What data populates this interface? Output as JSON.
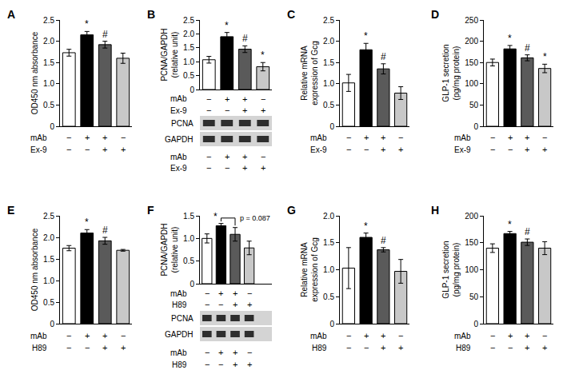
{
  "chart_data": [
    {
      "type": "bar",
      "label": "A",
      "ylabel": "OD450 nm absorbance",
      "categories": [
        null,
        null,
        null,
        null
      ],
      "values": [
        1.73,
        2.15,
        1.92,
        1.6
      ],
      "errors": [
        0.08,
        0.08,
        0.08,
        0.12
      ],
      "marks": [
        null,
        "*",
        "#",
        null
      ],
      "colors": [
        "#ffffff",
        "#000000",
        "#5a5a5a",
        "#c8c8c8"
      ],
      "ylim": [
        0,
        2.5
      ],
      "yticks": [
        0,
        0.5,
        {
          "value": 1,
          "label": "1.0"
        },
        1.5,
        {
          "value": 2,
          "label": "2.0"
        },
        2.5
      ],
      "treatments": [
        {
          "name": "mAb",
          "signs": [
            "−",
            "+",
            "+",
            "−"
          ]
        },
        {
          "name": "Ex-9",
          "signs": [
            "−",
            "−",
            "+",
            "+"
          ]
        }
      ]
    },
    {
      "type": "bar",
      "label": "B",
      "ylabel": [
        "PCNA/GAPDH",
        "(relative unit)"
      ],
      "categories": [
        null,
        null,
        null,
        null
      ],
      "values": [
        1.07,
        1.9,
        1.45,
        0.82
      ],
      "errors": [
        0.12,
        0.15,
        0.12,
        0.15
      ],
      "marks": [
        null,
        "*",
        "#",
        "*"
      ],
      "colors": [
        "#ffffff",
        "#000000",
        "#5a5a5a",
        "#c8c8c8"
      ],
      "ylim": [
        0,
        2.5
      ],
      "yticks": [
        0,
        0.5,
        {
          "value": 1,
          "label": "1.0"
        },
        1.5,
        {
          "value": 2,
          "label": "2.0"
        },
        2.5
      ],
      "treatments": [
        {
          "name": "mAb",
          "signs": [
            "−",
            "+",
            "+",
            "−"
          ]
        },
        {
          "name": "Ex-9",
          "signs": [
            "−",
            "−",
            "+",
            "+"
          ]
        }
      ],
      "blot": {
        "bands": [
          "PCNA",
          "GAPDH"
        ]
      }
    },
    {
      "type": "bar",
      "label": "C",
      "ylabel": [
        "Relative mRNA",
        "expression of Gcg"
      ],
      "categories": [
        null,
        null,
        null,
        null
      ],
      "values": [
        1.02,
        1.8,
        1.35,
        0.78
      ],
      "errors": [
        0.2,
        0.15,
        0.12,
        0.15
      ],
      "marks": [
        null,
        "*",
        "#",
        null
      ],
      "colors": [
        "#ffffff",
        "#000000",
        "#5a5a5a",
        "#c8c8c8"
      ],
      "ylim": [
        0,
        2.5
      ],
      "yticks": [
        0,
        0.5,
        {
          "value": 1,
          "label": "1.0"
        },
        1.5,
        {
          "value": 2,
          "label": "2.0"
        },
        2.5
      ],
      "treatments": [
        {
          "name": "mAb",
          "signs": [
            "−",
            "+",
            "+",
            "−"
          ]
        },
        {
          "name": "Ex-9",
          "signs": [
            "−",
            "−",
            "+",
            "+"
          ]
        }
      ]
    },
    {
      "type": "bar",
      "label": "D",
      "ylabel": [
        "GLP-1 secretion",
        "(pg/mg protein)"
      ],
      "categories": [
        null,
        null,
        null,
        null
      ],
      "values": [
        150,
        182,
        161,
        136
      ],
      "errors": [
        8,
        8,
        7,
        10
      ],
      "marks": [
        null,
        "*",
        "#",
        "*"
      ],
      "colors": [
        "#ffffff",
        "#000000",
        "#5a5a5a",
        "#c8c8c8"
      ],
      "ylim": [
        0,
        250
      ],
      "yticks": [
        0,
        50,
        100,
        150,
        200,
        250
      ],
      "treatments": [
        {
          "name": "mAb",
          "signs": [
            "−",
            "+",
            "+",
            "−"
          ]
        },
        {
          "name": "Ex-9",
          "signs": [
            "−",
            "−",
            "+",
            "+"
          ]
        }
      ]
    },
    {
      "type": "bar",
      "label": "E",
      "ylabel": "OD450 nm absorbance",
      "categories": [
        null,
        null,
        null,
        null
      ],
      "values": [
        1.75,
        2.1,
        1.92,
        1.7
      ],
      "errors": [
        0.06,
        0.08,
        0.08,
        0.02
      ],
      "marks": [
        null,
        "*",
        "#",
        null
      ],
      "colors": [
        "#ffffff",
        "#000000",
        "#5a5a5a",
        "#c8c8c8"
      ],
      "ylim": [
        0,
        2.5
      ],
      "yticks": [
        0,
        0.5,
        {
          "value": 1,
          "label": "1.0"
        },
        1.5,
        {
          "value": 2,
          "label": "2.0"
        },
        2.5
      ],
      "treatments": [
        {
          "name": "mAb",
          "signs": [
            "−",
            "+",
            "+",
            "−"
          ]
        },
        {
          "name": "H89",
          "signs": [
            "−",
            "−",
            "+",
            "+"
          ]
        }
      ]
    },
    {
      "type": "bar",
      "label": "F",
      "ylabel": [
        "PCNA/GAPDH",
        "(relative unit)"
      ],
      "categories": [
        null,
        null,
        null,
        null
      ],
      "values": [
        1.0,
        1.28,
        1.09,
        0.79
      ],
      "errors": [
        0.1,
        0.05,
        0.15,
        0.15
      ],
      "marks": [
        null,
        "*",
        null,
        null
      ],
      "colors": [
        "#ffffff",
        "#000000",
        "#5a5a5a",
        "#c8c8c8"
      ],
      "ylim": [
        0,
        1.5
      ],
      "yticks": [
        0,
        0.5,
        {
          "value": 1,
          "label": "1.0"
        },
        1.5
      ],
      "comparisons": [
        {
          "from": 1,
          "to": 2,
          "label": "p = 0.087"
        }
      ],
      "treatments": [
        {
          "name": "mAb",
          "signs": [
            "−",
            "+",
            "+",
            "−"
          ]
        },
        {
          "name": "H89",
          "signs": [
            "−",
            "−",
            "+",
            "+"
          ]
        }
      ],
      "blot": {
        "bands": [
          "PCNA",
          "GAPDH"
        ]
      }
    },
    {
      "type": "bar",
      "label": "G",
      "ylabel": [
        "Relative mRNA",
        "expression of Gcg"
      ],
      "categories": [
        null,
        null,
        null,
        null
      ],
      "values": [
        1.03,
        1.6,
        1.37,
        0.97
      ],
      "errors": [
        0.38,
        0.08,
        0.04,
        0.22
      ],
      "marks": [
        null,
        "*",
        "#",
        null
      ],
      "colors": [
        "#ffffff",
        "#000000",
        "#5a5a5a",
        "#c8c8c8"
      ],
      "ylim": [
        0,
        2
      ],
      "yticks": [
        0,
        0.5,
        {
          "value": 1,
          "label": "1.0"
        },
        1.5,
        {
          "value": 2,
          "label": "2.0"
        }
      ],
      "treatments": [
        {
          "name": "mAb",
          "signs": [
            "−",
            "+",
            "+",
            "−"
          ]
        },
        {
          "name": "H89",
          "signs": [
            "−",
            "−",
            "+",
            "+"
          ]
        }
      ]
    },
    {
      "type": "bar",
      "label": "H",
      "ylabel": [
        "GLP-1 secretion",
        "(pg/mg protein)"
      ],
      "categories": [
        null,
        null,
        null,
        null
      ],
      "values": [
        140,
        167,
        151,
        140
      ],
      "errors": [
        8,
        4,
        6,
        12
      ],
      "marks": [
        null,
        "*",
        "#",
        null
      ],
      "colors": [
        "#ffffff",
        "#000000",
        "#5a5a5a",
        "#c8c8c8"
      ],
      "ylim": [
        0,
        200
      ],
      "yticks": [
        0,
        50,
        100,
        150,
        200
      ],
      "treatments": [
        {
          "name": "mAb",
          "signs": [
            "−",
            "+",
            "+",
            "−"
          ]
        },
        {
          "name": "H89",
          "signs": [
            "−",
            "−",
            "+",
            "+"
          ]
        }
      ]
    }
  ]
}
